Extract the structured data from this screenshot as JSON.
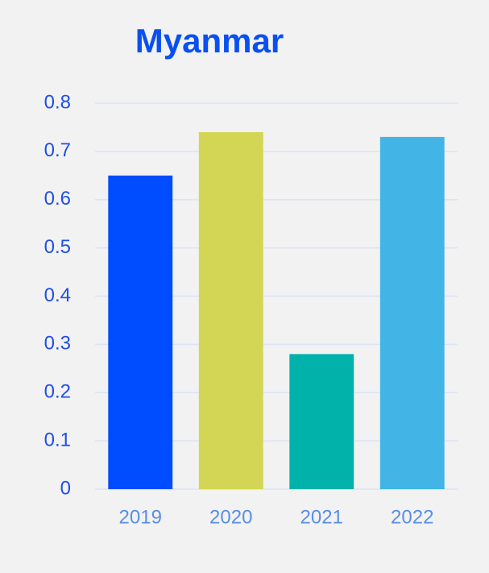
{
  "chart_data": {
    "type": "bar",
    "title": "Myanmar",
    "categories": [
      "2019",
      "2020",
      "2021",
      "2022"
    ],
    "values": [
      0.65,
      0.74,
      0.28,
      0.73
    ],
    "colors": [
      "#004cff",
      "#d3d654",
      "#00b2a9",
      "#42b5e6"
    ],
    "ylim": [
      0,
      0.8
    ],
    "yticks": [
      0,
      0.1,
      0.2,
      0.3,
      0.4,
      0.5,
      0.6,
      0.7,
      0.8
    ],
    "grid": true
  }
}
